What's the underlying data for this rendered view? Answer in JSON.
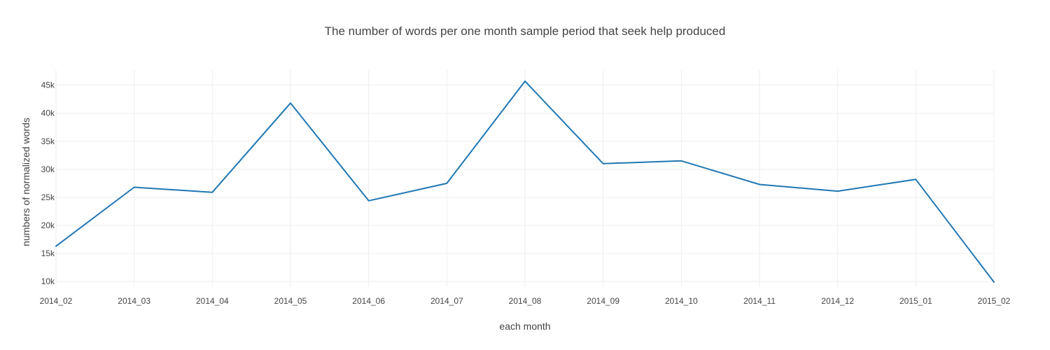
{
  "chart_data": {
    "type": "line",
    "title": "The number of words per one month sample period that seek help produced",
    "xlabel": "each month",
    "ylabel": "numbers of normalized words",
    "categories": [
      "2014_02",
      "2014_03",
      "2014_04",
      "2014_05",
      "2014_06",
      "2014_07",
      "2014_08",
      "2014_09",
      "2014_10",
      "2014_11",
      "2014_12",
      "2015_01",
      "2015_02"
    ],
    "series": [
      {
        "values": [
          16300,
          26800,
          25900,
          41800,
          24400,
          27500,
          45700,
          31000,
          31500,
          27300,
          26100,
          28200,
          9900
        ],
        "color": "#1f77b4"
      }
    ],
    "yticks": [
      10000,
      15000,
      20000,
      25000,
      30000,
      35000,
      40000,
      45000
    ],
    "ytick_labels": [
      "10k",
      "15k",
      "20k",
      "25k",
      "30k",
      "35k",
      "40k",
      "45k"
    ],
    "ylim": [
      9900,
      45700
    ],
    "grid": true,
    "legend": "none"
  }
}
